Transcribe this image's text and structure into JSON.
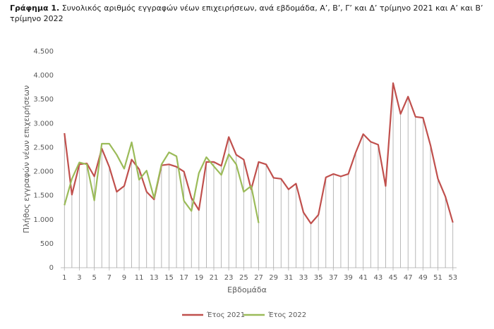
{
  "chart_data": {
    "type": "line",
    "title_label": "Γράφημα 1.",
    "title": "Συνολικός αριθμός εγγραφών νέων επιχειρήσεων, ανά εβδομάδα, Α’, Β’, Γ’ και Δ’ τρίμηνο 2021 και Α’ και Β’ τρίμηνο 2022",
    "x_label": "Εβδομάδα",
    "y_label": "Πλήθος εγγραφών νέων επιχειρήσεων",
    "x": [
      1,
      2,
      3,
      4,
      5,
      6,
      7,
      8,
      9,
      10,
      11,
      12,
      13,
      14,
      15,
      16,
      17,
      18,
      19,
      20,
      21,
      22,
      23,
      24,
      25,
      26,
      27,
      28,
      29,
      30,
      31,
      32,
      33,
      34,
      35,
      36,
      37,
      38,
      39,
      40,
      41,
      42,
      43,
      44,
      45,
      46,
      47,
      48,
      49,
      50,
      51,
      52,
      53
    ],
    "xlim": [
      0.5,
      53.5
    ],
    "xticks": [
      1,
      3,
      5,
      7,
      9,
      11,
      13,
      15,
      17,
      19,
      21,
      23,
      25,
      27,
      29,
      31,
      33,
      35,
      37,
      39,
      41,
      43,
      45,
      47,
      49,
      51,
      53
    ],
    "ylim": [
      0,
      4500
    ],
    "yticks": [
      0,
      {
        "value": 500,
        "label": "500"
      },
      {
        "value": 1000,
        "label": "1.000"
      },
      {
        "value": 1500,
        "label": "1.500"
      },
      {
        "value": 2000,
        "label": "2.000"
      },
      {
        "value": 2500,
        "label": "2.500"
      },
      {
        "value": 3000,
        "label": "3.000"
      },
      {
        "value": 3500,
        "label": "3.500"
      },
      {
        "value": 4000,
        "label": "4.000"
      },
      {
        "value": 4500,
        "label": "4.500"
      }
    ],
    "drop_lines": true,
    "legend": "bottom",
    "series": [
      {
        "name": "Έτος 2021",
        "color": "#c0504d",
        "values": [
          2800,
          1520,
          2150,
          2170,
          1900,
          2480,
          2100,
          1580,
          1700,
          2250,
          2050,
          1580,
          1420,
          2130,
          2150,
          2100,
          2000,
          1450,
          1200,
          2200,
          2200,
          2120,
          2720,
          2350,
          2250,
          1630,
          2200,
          2150,
          1870,
          1850,
          1630,
          1750,
          1150,
          920,
          1100,
          1880,
          1950,
          1900,
          1950,
          2400,
          2780,
          2620,
          2560,
          1700,
          3840,
          3200,
          3560,
          3140,
          3120,
          2550,
          1850,
          1480,
          940
        ]
      },
      {
        "name": "Έτος 2022",
        "color": "#9bbb59",
        "values": [
          1300,
          1850,
          2190,
          2150,
          1400,
          2580,
          2580,
          2350,
          2060,
          2610,
          1830,
          2020,
          1450,
          2150,
          2400,
          2320,
          1390,
          1180,
          1970,
          2300,
          2110,
          1930,
          2360,
          2150,
          1580,
          1700,
          930,
          null,
          null,
          null,
          null,
          null,
          null,
          null,
          null,
          null,
          null,
          null,
          null,
          null,
          null,
          null,
          null,
          null,
          null,
          null,
          null,
          null,
          null,
          null,
          null,
          null,
          null
        ]
      }
    ]
  }
}
